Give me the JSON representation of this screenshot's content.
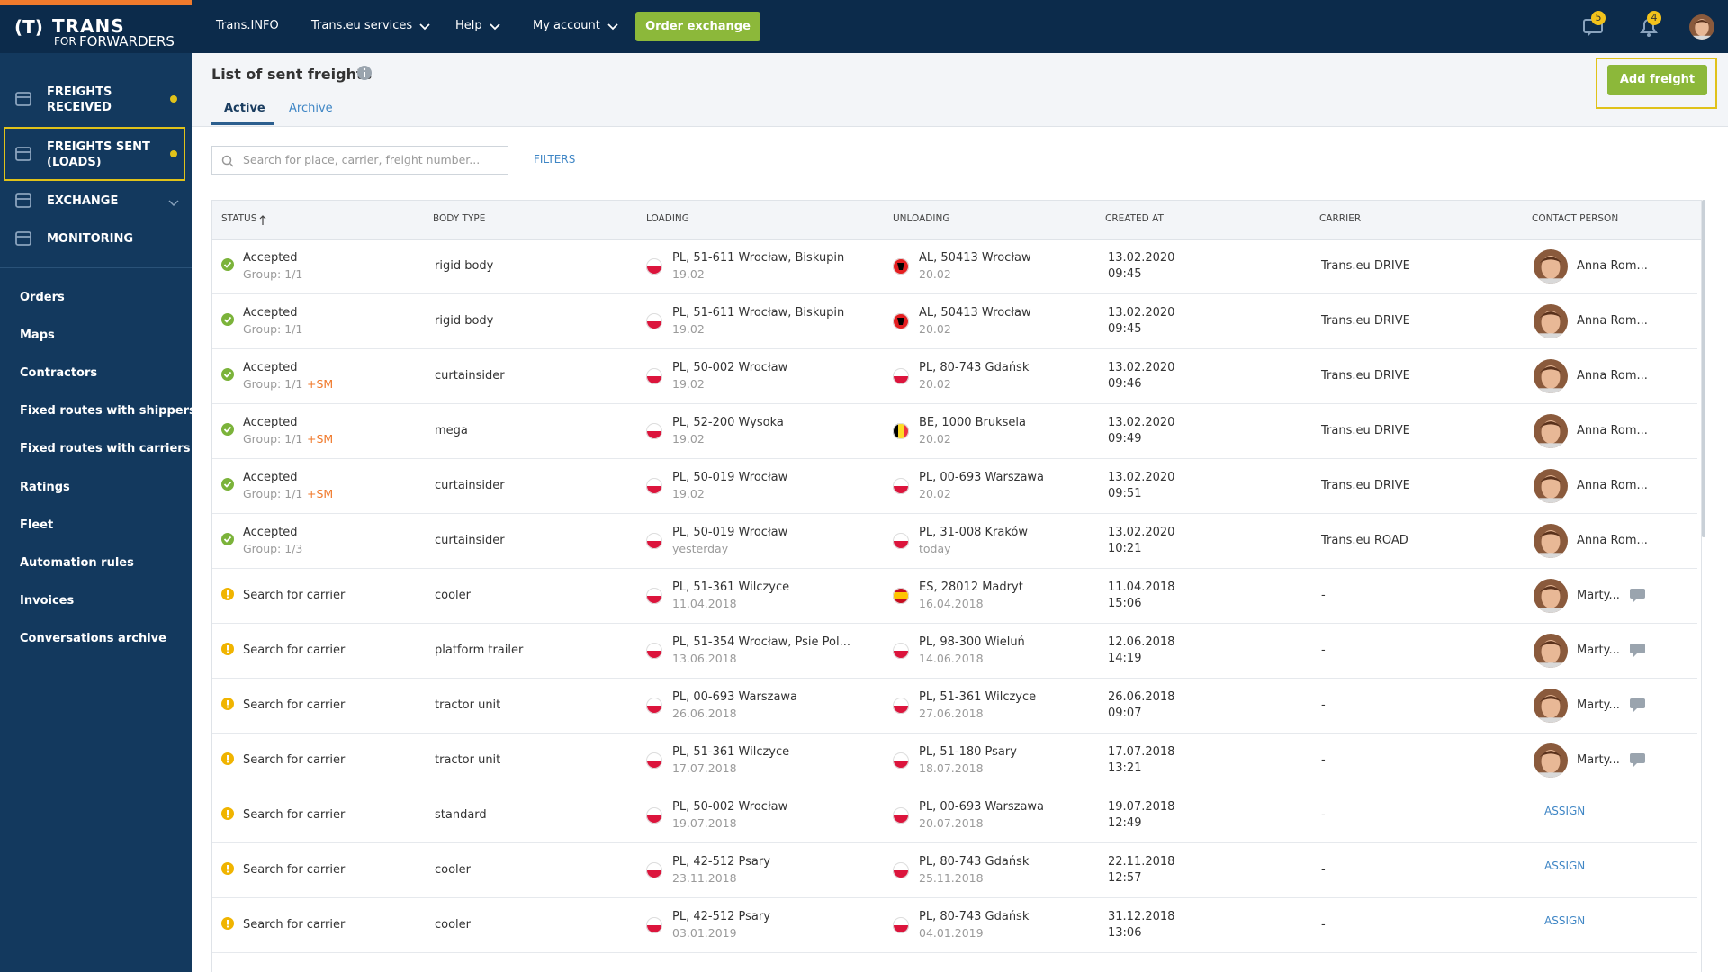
{
  "logo": {
    "brand": "TRANS",
    "prefix": "FOR",
    "tagline": "FORWARDERS"
  },
  "topbar": {
    "links": [
      "Trans.INFO",
      "Trans.eu services",
      "Help",
      "My account"
    ],
    "dropdowns": [
      false,
      true,
      true,
      true
    ],
    "button": "Order exchange",
    "messages": 5,
    "notifications": 4
  },
  "sidebar": {
    "main": [
      {
        "label": "FREIGHTS RECEIVED",
        "dot": true
      },
      {
        "label": "FREIGHTS SENT (LOADS)",
        "dot": true,
        "active": true
      },
      {
        "label": "EXCHANGE",
        "chevron": true
      },
      {
        "label": "MONITORING"
      }
    ],
    "links": [
      "Orders",
      "Maps",
      "Contractors",
      "Fixed routes with shippers",
      "Fixed routes with carriers",
      "Ratings",
      "Fleet",
      "Automation rules",
      "Invoices",
      "Conversations archive"
    ]
  },
  "header": {
    "title": "List of sent freights",
    "tabs": [
      "Active",
      "Archive"
    ],
    "add_button": "Add freight",
    "search_placeholder": "Search for place, carrier, freight number...",
    "filters": "FILTERS"
  },
  "table": {
    "columns": [
      "STATUS",
      "BODY TYPE",
      "LOADING",
      "UNLOADING",
      "CREATED AT",
      "CARRIER",
      "CONTACT PERSON"
    ],
    "rows": [
      {
        "status": "Accepted",
        "group": "Group: 1/1",
        "body": "rigid body",
        "load": "PL, 51-611 Wrocław, Biskupin",
        "load_date": "19.02",
        "unload": "AL, 50413 Wrocław",
        "unload_date": "20.02",
        "created": "13.02.2020",
        "time": "09:45",
        "carrier": "Trans.eu DRIVE",
        "contact": "Anna Rom..."
      },
      {
        "status": "Accepted",
        "group": "Group: 1/1",
        "body": "rigid body",
        "load": "PL, 51-611 Wrocław, Biskupin",
        "load_date": "19.02",
        "unload": "AL, 50413 Wrocław",
        "unload_date": "20.02",
        "created": "13.02.2020",
        "time": "09:45",
        "carrier": "Trans.eu DRIVE",
        "contact": "Anna Rom..."
      },
      {
        "status": "Accepted",
        "group": "Group: 1/1",
        "sm": "+SM",
        "body": "curtainsider",
        "load": "PL, 50-002 Wrocław",
        "load_date": "19.02",
        "unload": "PL, 80-743 Gdańsk",
        "unload_date": "20.02",
        "created": "13.02.2020",
        "time": "09:46",
        "carrier": "Trans.eu DRIVE",
        "contact": "Anna Rom..."
      },
      {
        "status": "Accepted",
        "group": "Group: 1/1",
        "sm": "+SM",
        "body": "mega",
        "load": "PL, 52-200 Wysoka",
        "load_date": "19.02",
        "unload": "BE, 1000 Bruksela",
        "unload_date": "20.02",
        "created": "13.02.2020",
        "time": "09:49",
        "carrier": "Trans.eu DRIVE",
        "contact": "Anna Rom..."
      },
      {
        "status": "Accepted",
        "group": "Group: 1/1",
        "sm": "+SM",
        "body": "curtainsider",
        "load": "PL, 50-019 Wrocław",
        "load_date": "19.02",
        "unload": "PL, 00-693 Warszawa",
        "unload_date": "20.02",
        "created": "13.02.2020",
        "time": "09:51",
        "carrier": "Trans.eu DRIVE",
        "contact": "Anna Rom..."
      },
      {
        "status": "Accepted",
        "group": "Group: 1/3",
        "body": "curtainsider",
        "load": "PL, 50-019 Wrocław",
        "load_date": "yesterday",
        "unload": "PL, 31-008 Kraków",
        "unload_date": "today",
        "created": "13.02.2020",
        "time": "10:21",
        "carrier": "Trans.eu ROAD",
        "contact": "Anna Rom..."
      },
      {
        "status": "Search for carrier",
        "body": "cooler",
        "load": "PL, 51-361 Wilczyce",
        "load_date": "11.04.2018",
        "unload": "ES, 28012 Madryt",
        "unload_date": "16.04.2018",
        "created": "11.04.2018",
        "time": "15:06",
        "carrier": "-",
        "contact": "Marty...",
        "chat": true
      },
      {
        "status": "Search for carrier",
        "body": "platform trailer",
        "load": "PL, 51-354 Wrocław, Psie Pol...",
        "load_date": "13.06.2018",
        "unload": "PL, 98-300 Wieluń",
        "unload_date": "14.06.2018",
        "created": "12.06.2018",
        "time": "14:19",
        "carrier": "-",
        "contact": "Marty...",
        "chat": true
      },
      {
        "status": "Search for carrier",
        "body": "tractor unit",
        "load": "PL, 00-693 Warszawa",
        "load_date": "26.06.2018",
        "unload": "PL, 51-361 Wilczyce",
        "unload_date": "27.06.2018",
        "created": "26.06.2018",
        "time": "09:07",
        "carrier": "-",
        "contact": "Marty...",
        "chat": true
      },
      {
        "status": "Search for carrier",
        "body": "tractor unit",
        "load": "PL, 51-361 Wilczyce",
        "load_date": "17.07.2018",
        "unload": "PL, 51-180 Psary",
        "unload_date": "18.07.2018",
        "created": "17.07.2018",
        "time": "13:21",
        "carrier": "-",
        "contact": "Marty...",
        "chat": true
      },
      {
        "status": "Search for carrier",
        "body": "standard",
        "load": "PL, 50-002 Wrocław",
        "load_date": "19.07.2018",
        "unload": "PL, 00-693 Warszawa",
        "unload_date": "20.07.2018",
        "created": "19.07.2018",
        "time": "12:49",
        "carrier": "-",
        "action": "ASSIGN"
      },
      {
        "status": "Search for carrier",
        "body": "cooler",
        "load": "PL, 42-512 Psary",
        "load_date": "23.11.2018",
        "unload": "PL, 80-743 Gdańsk",
        "unload_date": "25.11.2018",
        "created": "22.11.2018",
        "time": "12:57",
        "carrier": "-",
        "action": "ASSIGN"
      },
      {
        "status": "Search for carrier",
        "body": "cooler",
        "load": "PL, 42-512 Psary",
        "load_date": "03.01.2019",
        "unload": "PL, 80-743 Gdańsk",
        "unload_date": "04.01.2019",
        "created": "31.12.2018",
        "time": "13:06",
        "carrier": "-",
        "action": "ASSIGN"
      }
    ]
  }
}
